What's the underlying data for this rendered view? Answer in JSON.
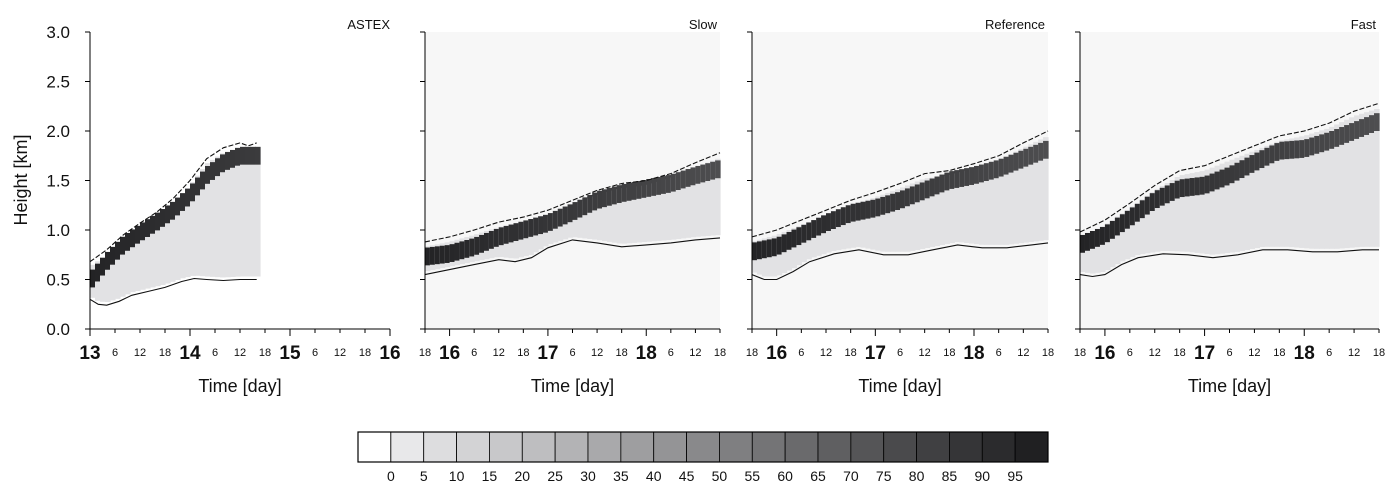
{
  "chart_data": {
    "type": "heatmap",
    "ylabel": "Height  [km]",
    "ylim": [
      0.0,
      3.0
    ],
    "yticks": [
      "0.0",
      "0.5",
      "1.0",
      "1.5",
      "2.0",
      "2.5",
      "3.0"
    ],
    "xlabel": "Time  [day]",
    "colorbar": {
      "ticks": [
        "0",
        "5",
        "10",
        "15",
        "20",
        "25",
        "30",
        "35",
        "40",
        "45",
        "50",
        "55",
        "60",
        "65",
        "70",
        "75",
        "80",
        "85",
        "90",
        "95"
      ],
      "range": [
        0,
        100
      ]
    },
    "panels": [
      {
        "title": "ASTEX",
        "xlim_hours": [
          0,
          72
        ],
        "xticks": [
          {
            "h": 0,
            "label": "13",
            "major": true
          },
          {
            "h": 6,
            "label": "6"
          },
          {
            "h": 12,
            "label": "12"
          },
          {
            "h": 18,
            "label": "18"
          },
          {
            "h": 24,
            "label": "14",
            "major": true
          },
          {
            "h": 30,
            "label": "6"
          },
          {
            "h": 36,
            "label": "12"
          },
          {
            "h": 42,
            "label": "18"
          },
          {
            "h": 48,
            "label": "15",
            "major": true
          },
          {
            "h": 54,
            "label": "6"
          },
          {
            "h": 60,
            "label": "12"
          },
          {
            "h": 66,
            "label": "18"
          },
          {
            "h": 72,
            "label": "16",
            "major": true
          }
        ],
        "data_end_h": 40,
        "top_line": [
          [
            0,
            0.68
          ],
          [
            4,
            0.8
          ],
          [
            8,
            0.95
          ],
          [
            12,
            1.07
          ],
          [
            16,
            1.18
          ],
          [
            20,
            1.32
          ],
          [
            24,
            1.5
          ],
          [
            28,
            1.72
          ],
          [
            32,
            1.83
          ],
          [
            36,
            1.88
          ],
          [
            38,
            1.85
          ],
          [
            40,
            1.88
          ]
        ],
        "cloud_core": [
          [
            0,
            0.48
          ],
          [
            4,
            0.68
          ],
          [
            8,
            0.85
          ],
          [
            12,
            0.97
          ],
          [
            16,
            1.08
          ],
          [
            20,
            1.2
          ],
          [
            24,
            1.35
          ],
          [
            28,
            1.55
          ],
          [
            32,
            1.68
          ],
          [
            36,
            1.75
          ],
          [
            40,
            1.75
          ]
        ],
        "base_line": [
          [
            0,
            0.3
          ],
          [
            2,
            0.25
          ],
          [
            4,
            0.24
          ],
          [
            7,
            0.28
          ],
          [
            10,
            0.34
          ],
          [
            14,
            0.38
          ],
          [
            18,
            0.42
          ],
          [
            22,
            0.48
          ],
          [
            25,
            0.51
          ],
          [
            28,
            0.5
          ],
          [
            32,
            0.49
          ],
          [
            36,
            0.5
          ],
          [
            40,
            0.5
          ]
        ]
      },
      {
        "title": "Slow",
        "xlim_hours": [
          0,
          72
        ],
        "xticks": [
          {
            "h": 0,
            "label": "18"
          },
          {
            "h": 6,
            "label": "16",
            "major": true
          },
          {
            "h": 12,
            "label": "6"
          },
          {
            "h": 18,
            "label": "12"
          },
          {
            "h": 24,
            "label": "18"
          },
          {
            "h": 30,
            "label": "17",
            "major": true
          },
          {
            "h": 36,
            "label": "6"
          },
          {
            "h": 42,
            "label": "12"
          },
          {
            "h": 48,
            "label": "18"
          },
          {
            "h": 54,
            "label": "18",
            "major": true
          },
          {
            "h": 60,
            "label": "6"
          },
          {
            "h": 66,
            "label": "12"
          },
          {
            "h": 72,
            "label": "18"
          }
        ],
        "data_end_h": 72,
        "top_line": [
          [
            0,
            0.88
          ],
          [
            6,
            0.93
          ],
          [
            12,
            1.0
          ],
          [
            18,
            1.08
          ],
          [
            24,
            1.13
          ],
          [
            30,
            1.2
          ],
          [
            36,
            1.3
          ],
          [
            42,
            1.4
          ],
          [
            48,
            1.47
          ],
          [
            54,
            1.5
          ],
          [
            60,
            1.57
          ],
          [
            66,
            1.68
          ],
          [
            72,
            1.78
          ]
        ],
        "cloud_core": [
          [
            0,
            0.73
          ],
          [
            6,
            0.76
          ],
          [
            12,
            0.83
          ],
          [
            18,
            0.93
          ],
          [
            24,
            1.0
          ],
          [
            30,
            1.07
          ],
          [
            36,
            1.18
          ],
          [
            42,
            1.3
          ],
          [
            48,
            1.37
          ],
          [
            54,
            1.42
          ],
          [
            60,
            1.47
          ],
          [
            66,
            1.55
          ],
          [
            72,
            1.62
          ]
        ],
        "base_line": [
          [
            0,
            0.55
          ],
          [
            6,
            0.6
          ],
          [
            12,
            0.65
          ],
          [
            18,
            0.7
          ],
          [
            22,
            0.68
          ],
          [
            26,
            0.72
          ],
          [
            30,
            0.82
          ],
          [
            36,
            0.9
          ],
          [
            42,
            0.87
          ],
          [
            48,
            0.83
          ],
          [
            54,
            0.85
          ],
          [
            60,
            0.87
          ],
          [
            66,
            0.9
          ],
          [
            72,
            0.92
          ]
        ]
      },
      {
        "title": "Reference",
        "xlim_hours": [
          0,
          72
        ],
        "xticks": [
          {
            "h": 0,
            "label": "18"
          },
          {
            "h": 6,
            "label": "16",
            "major": true
          },
          {
            "h": 12,
            "label": "6"
          },
          {
            "h": 18,
            "label": "12"
          },
          {
            "h": 24,
            "label": "18"
          },
          {
            "h": 30,
            "label": "17",
            "major": true
          },
          {
            "h": 36,
            "label": "6"
          },
          {
            "h": 42,
            "label": "12"
          },
          {
            "h": 48,
            "label": "18"
          },
          {
            "h": 54,
            "label": "18",
            "major": true
          },
          {
            "h": 60,
            "label": "6"
          },
          {
            "h": 66,
            "label": "12"
          },
          {
            "h": 72,
            "label": "18"
          }
        ],
        "data_end_h": 72,
        "top_line": [
          [
            0,
            0.93
          ],
          [
            6,
            1.0
          ],
          [
            12,
            1.1
          ],
          [
            18,
            1.2
          ],
          [
            24,
            1.3
          ],
          [
            30,
            1.38
          ],
          [
            36,
            1.47
          ],
          [
            42,
            1.57
          ],
          [
            48,
            1.6
          ],
          [
            54,
            1.67
          ],
          [
            60,
            1.75
          ],
          [
            66,
            1.88
          ],
          [
            72,
            2.0
          ]
        ],
        "cloud_core": [
          [
            0,
            0.78
          ],
          [
            6,
            0.83
          ],
          [
            12,
            0.95
          ],
          [
            18,
            1.07
          ],
          [
            24,
            1.17
          ],
          [
            30,
            1.22
          ],
          [
            36,
            1.3
          ],
          [
            42,
            1.4
          ],
          [
            48,
            1.5
          ],
          [
            54,
            1.55
          ],
          [
            60,
            1.62
          ],
          [
            66,
            1.72
          ],
          [
            72,
            1.82
          ]
        ],
        "base_line": [
          [
            0,
            0.55
          ],
          [
            3,
            0.5
          ],
          [
            6,
            0.5
          ],
          [
            10,
            0.58
          ],
          [
            14,
            0.68
          ],
          [
            20,
            0.76
          ],
          [
            26,
            0.8
          ],
          [
            32,
            0.75
          ],
          [
            38,
            0.75
          ],
          [
            44,
            0.8
          ],
          [
            50,
            0.85
          ],
          [
            56,
            0.82
          ],
          [
            62,
            0.82
          ],
          [
            68,
            0.85
          ],
          [
            72,
            0.87
          ]
        ]
      },
      {
        "title": "Fast",
        "xlim_hours": [
          0,
          72
        ],
        "xticks": [
          {
            "h": 0,
            "label": "18"
          },
          {
            "h": 6,
            "label": "16",
            "major": true
          },
          {
            "h": 12,
            "label": "6"
          },
          {
            "h": 18,
            "label": "12"
          },
          {
            "h": 24,
            "label": "18"
          },
          {
            "h": 30,
            "label": "17",
            "major": true
          },
          {
            "h": 36,
            "label": "6"
          },
          {
            "h": 42,
            "label": "12"
          },
          {
            "h": 48,
            "label": "18"
          },
          {
            "h": 54,
            "label": "18",
            "major": true
          },
          {
            "h": 60,
            "label": "6"
          },
          {
            "h": 66,
            "label": "12"
          },
          {
            "h": 72,
            "label": "18"
          }
        ],
        "data_end_h": 72,
        "top_line": [
          [
            0,
            0.98
          ],
          [
            6,
            1.1
          ],
          [
            12,
            1.27
          ],
          [
            18,
            1.45
          ],
          [
            24,
            1.6
          ],
          [
            30,
            1.65
          ],
          [
            36,
            1.75
          ],
          [
            42,
            1.85
          ],
          [
            48,
            1.95
          ],
          [
            54,
            2.0
          ],
          [
            60,
            2.08
          ],
          [
            66,
            2.2
          ],
          [
            72,
            2.28
          ]
        ],
        "cloud_core": [
          [
            0,
            0.85
          ],
          [
            6,
            0.95
          ],
          [
            12,
            1.12
          ],
          [
            18,
            1.3
          ],
          [
            24,
            1.42
          ],
          [
            30,
            1.45
          ],
          [
            36,
            1.55
          ],
          [
            42,
            1.68
          ],
          [
            48,
            1.8
          ],
          [
            54,
            1.82
          ],
          [
            60,
            1.9
          ],
          [
            66,
            2.0
          ],
          [
            72,
            2.1
          ]
        ],
        "base_line": [
          [
            0,
            0.55
          ],
          [
            3,
            0.53
          ],
          [
            6,
            0.55
          ],
          [
            10,
            0.65
          ],
          [
            14,
            0.72
          ],
          [
            20,
            0.76
          ],
          [
            26,
            0.75
          ],
          [
            32,
            0.72
          ],
          [
            38,
            0.75
          ],
          [
            44,
            0.8
          ],
          [
            50,
            0.8
          ],
          [
            56,
            0.78
          ],
          [
            62,
            0.78
          ],
          [
            68,
            0.8
          ],
          [
            72,
            0.8
          ]
        ]
      }
    ]
  }
}
